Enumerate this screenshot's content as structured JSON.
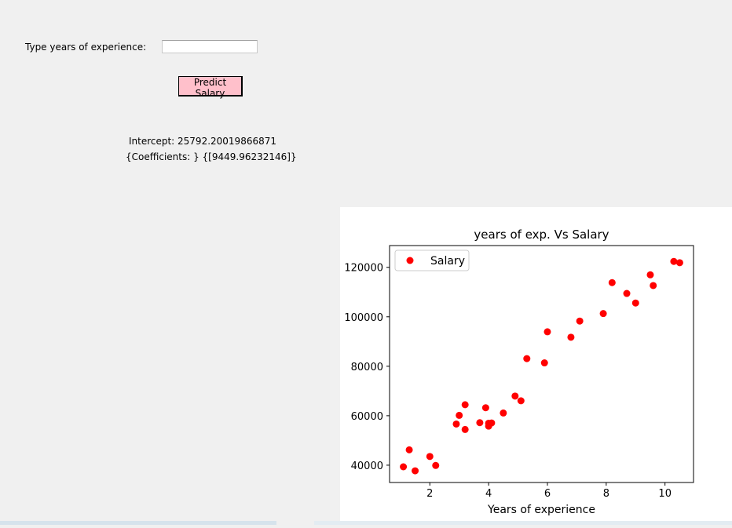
{
  "form": {
    "label": "Type years of experience:",
    "input_value": "",
    "button_label": "Predict Salary",
    "button_color": "#ffc0cb"
  },
  "results": {
    "intercept": "Intercept: 25792.20019866871",
    "coefficients": "{Coefficients: } {[9449.96232146]}"
  },
  "chart_data": {
    "type": "scatter",
    "title": "years of exp. Vs Salary",
    "xlabel": "Years of experience",
    "ylabel": "",
    "xlim": [
      0.63,
      10.97
    ],
    "ylim": [
      33000,
      128800
    ],
    "xticks": [
      2,
      4,
      6,
      8,
      10
    ],
    "yticks": [
      40000,
      60000,
      80000,
      100000,
      120000
    ],
    "grid": false,
    "legend_position": "top-left",
    "series": [
      {
        "name": "Salary",
        "color": "#ff0000",
        "points": [
          [
            1.1,
            39343
          ],
          [
            1.3,
            46205
          ],
          [
            1.5,
            37731
          ],
          [
            2.0,
            43525
          ],
          [
            2.2,
            39891
          ],
          [
            2.9,
            56642
          ],
          [
            3.0,
            60150
          ],
          [
            3.2,
            54445
          ],
          [
            3.2,
            64445
          ],
          [
            3.7,
            57189
          ],
          [
            3.9,
            63218
          ],
          [
            4.0,
            55794
          ],
          [
            4.0,
            56957
          ],
          [
            4.1,
            57081
          ],
          [
            4.5,
            61111
          ],
          [
            4.9,
            67938
          ],
          [
            5.1,
            66029
          ],
          [
            5.3,
            83088
          ],
          [
            5.9,
            81363
          ],
          [
            6.0,
            93940
          ],
          [
            6.8,
            91738
          ],
          [
            7.1,
            98273
          ],
          [
            7.9,
            101302
          ],
          [
            8.2,
            113812
          ],
          [
            8.7,
            109431
          ],
          [
            9.0,
            105582
          ],
          [
            9.5,
            116969
          ],
          [
            9.6,
            112635
          ],
          [
            10.3,
            122391
          ],
          [
            10.5,
            121872
          ]
        ]
      }
    ]
  }
}
